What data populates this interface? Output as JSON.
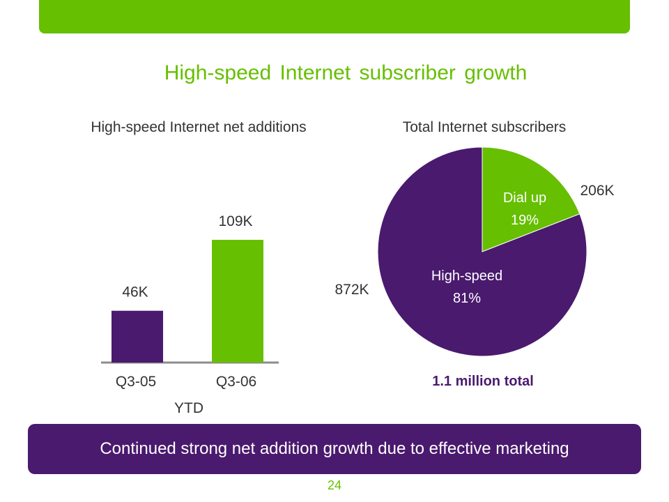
{
  "slide": {
    "title": "High-speed Internet subscriber growth",
    "banner": "Continued strong net addition growth due to effective marketing",
    "page_number": "24"
  },
  "colors": {
    "green": "#66bf00",
    "purple": "#4a1a6e",
    "text": "#333333"
  },
  "chart_data": [
    {
      "type": "bar",
      "title": "High-speed Internet net additions",
      "categories": [
        "Q3-05",
        "Q3-06"
      ],
      "values": [
        46,
        109
      ],
      "data_labels": [
        "46K",
        "109K"
      ],
      "unit": "K",
      "xlabel": "YTD",
      "ylabel": "",
      "bar_colors": [
        "#4a1a6e",
        "#66bf00"
      ]
    },
    {
      "type": "pie",
      "title": "Total Internet subscribers",
      "slices": [
        {
          "label": "Dial up",
          "percent": "19%",
          "value": 206,
          "value_label": "206K",
          "color": "#66bf00"
        },
        {
          "label": "High-speed",
          "percent": "81%",
          "value": 872,
          "value_label": "872K",
          "color": "#4a1a6e"
        }
      ],
      "total_label": "1.1 million total"
    }
  ]
}
